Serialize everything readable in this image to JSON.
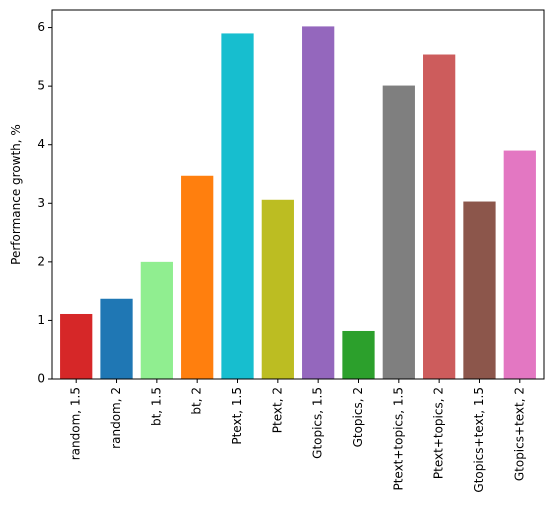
{
  "chart_data": {
    "type": "bar",
    "title": "",
    "xlabel": "",
    "ylabel": "Performance growth, %",
    "ylim": [
      0,
      6.3
    ],
    "yticks": [
      0,
      1,
      2,
      3,
      4,
      5,
      6
    ],
    "grid": false,
    "categories": [
      "random, 1.5",
      "random, 2",
      "bt, 1.5",
      "bt, 2",
      "Ptext, 1.5",
      "Ptext, 2",
      "Gtopics, 1.5",
      "Gtopics, 2",
      "Ptext+topics, 1.5",
      "Ptext+topics, 2",
      "Gtopics+text, 1.5",
      "Gtopics+text, 2"
    ],
    "values": [
      1.11,
      1.37,
      2.0,
      3.47,
      5.9,
      3.06,
      6.02,
      0.82,
      5.01,
      5.54,
      3.03,
      3.9
    ],
    "colors": [
      "#d62728",
      "#1f77b4",
      "#90ee90",
      "#ff7f0e",
      "#17becf",
      "#bcbd22",
      "#9467bd",
      "#2ca02c",
      "#7f7f7f",
      "#cd5c5c",
      "#8c564b",
      "#e377c2"
    ]
  }
}
